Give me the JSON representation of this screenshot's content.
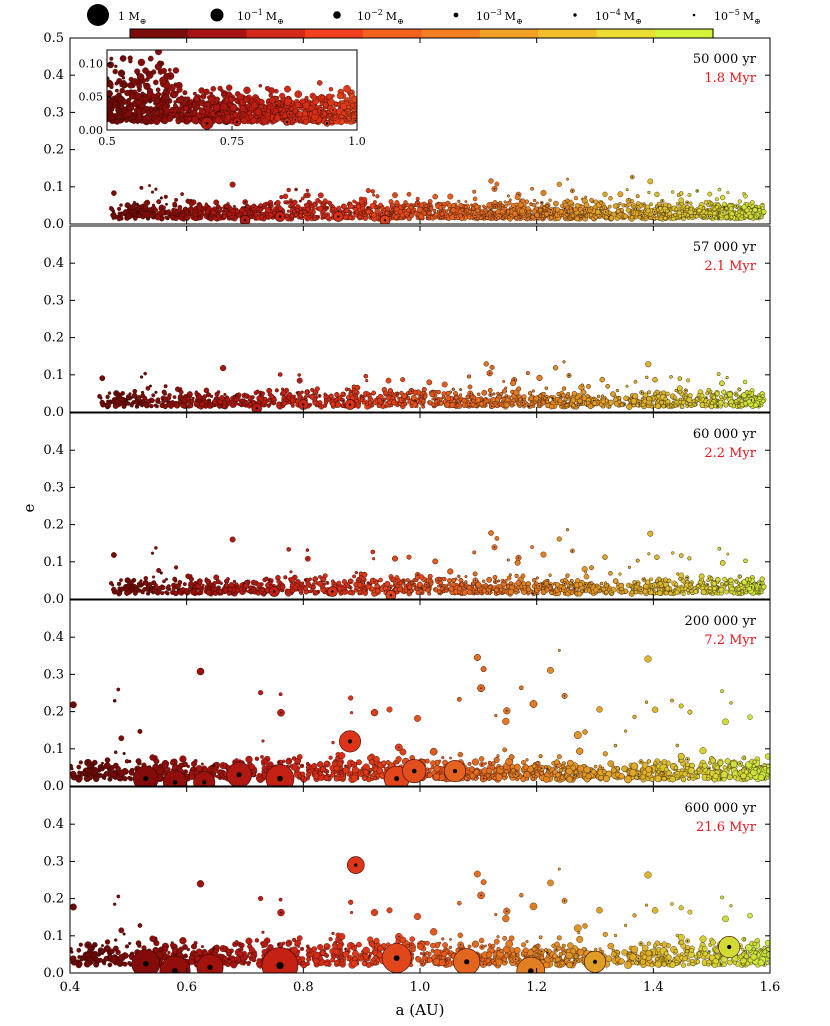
{
  "chart_data": {
    "type": "scatter",
    "xlabel": "a (AU)",
    "ylabel": "e",
    "xlim": [
      0.4,
      1.6
    ],
    "ylim": [
      0.0,
      0.5
    ],
    "x_ticks": [
      "0.4",
      "0.6",
      "0.8",
      "1.0",
      "1.2",
      "1.4",
      "1.6"
    ],
    "y_ticks": [
      "0.0",
      "0.1",
      "0.2",
      "0.3",
      "0.4",
      "0.5"
    ],
    "shared_axes": true,
    "grid": false,
    "color_encoding": "semi-major axis (dark red at small a to yellow-green at large a)",
    "size_encoding": "particle mass",
    "colorbar_colors": [
      "#7a0c0c",
      "#a81414",
      "#d42a1c",
      "#f2401e",
      "#f3611f",
      "#f47f22",
      "#f2a026",
      "#f2be2a",
      "#eedd32",
      "#d5f23a"
    ],
    "mass_legend": [
      {
        "label_main": "1 M",
        "label_sup": "",
        "radius": 11
      },
      {
        "label_main": "10",
        "label_sup": "−1",
        "radius": 6.5
      },
      {
        "label_main": "10",
        "label_sup": "−2",
        "radius": 3.8
      },
      {
        "label_main": "10",
        "label_sup": "−3",
        "radius": 2.4
      },
      {
        "label_main": "10",
        "label_sup": "−4",
        "radius": 1.7
      },
      {
        "label_main": "10",
        "label_sup": "−5",
        "radius": 1.3
      }
    ],
    "mass_unit": "M",
    "mass_unit_sub": "⊕",
    "panels": [
      {
        "time": "50 000 yr",
        "scaled_time": "1.8 Myr",
        "a_min": 0.47,
        "a_max": 1.59,
        "e_typical": 0.04,
        "e_spread_max": 0.15,
        "max_body_mass_earth": 0.03,
        "big_bodies": [
          {
            "a": 0.7,
            "e": 0.01
          },
          {
            "a": 0.76,
            "e": 0.02
          },
          {
            "a": 0.86,
            "e": 0.02
          },
          {
            "a": 0.94,
            "e": 0.01
          }
        ]
      },
      {
        "time": "57 000 yr",
        "scaled_time": "2.1 Myr",
        "a_min": 0.45,
        "a_max": 1.59,
        "e_typical": 0.04,
        "e_spread_max": 0.17,
        "max_body_mass_earth": 0.03,
        "big_bodies": [
          {
            "a": 0.72,
            "e": 0.01
          },
          {
            "a": 0.8,
            "e": 0.02
          },
          {
            "a": 0.88,
            "e": 0.02
          }
        ]
      },
      {
        "time": "60 000 yr",
        "scaled_time": "2.2 Myr",
        "a_min": 0.47,
        "a_max": 1.59,
        "e_typical": 0.04,
        "e_spread_max": 0.24,
        "max_body_mass_earth": 0.03,
        "big_bodies": [
          {
            "a": 0.75,
            "e": 0.02
          },
          {
            "a": 0.85,
            "e": 0.02
          },
          {
            "a": 0.95,
            "e": 0.01
          }
        ]
      },
      {
        "time": "200 000 yr",
        "scaled_time": "7.2 Myr",
        "a_min": 0.4,
        "a_max": 1.6,
        "e_typical": 0.05,
        "e_spread_max": 0.48,
        "max_body_mass_earth": 0.1,
        "big_bodies": [
          {
            "a": 0.53,
            "e": 0.02,
            "m": 0.06
          },
          {
            "a": 0.58,
            "e": 0.01,
            "m": 0.05
          },
          {
            "a": 0.63,
            "e": 0.01,
            "m": 0.04
          },
          {
            "a": 0.69,
            "e": 0.03,
            "m": 0.06
          },
          {
            "a": 0.76,
            "e": 0.02,
            "m": 0.08
          },
          {
            "a": 0.88,
            "e": 0.12,
            "m": 0.04
          },
          {
            "a": 0.96,
            "e": 0.02,
            "m": 0.06
          },
          {
            "a": 0.99,
            "e": 0.04,
            "m": 0.05
          },
          {
            "a": 1.06,
            "e": 0.04,
            "m": 0.04
          }
        ]
      },
      {
        "time": "600 000 yr",
        "scaled_time": "21.6 Myr",
        "a_min": 0.4,
        "a_max": 1.6,
        "e_typical": 0.06,
        "e_spread_max": 0.36,
        "max_body_mass_earth": 0.15,
        "big_bodies": [
          {
            "a": 0.53,
            "e": 0.025,
            "m": 0.08
          },
          {
            "a": 0.58,
            "e": 0.005,
            "m": 0.1
          },
          {
            "a": 0.64,
            "e": 0.015,
            "m": 0.07
          },
          {
            "a": 0.76,
            "e": 0.02,
            "m": 0.15
          },
          {
            "a": 0.96,
            "e": 0.04,
            "m": 0.09
          },
          {
            "a": 1.08,
            "e": 0.03,
            "m": 0.07
          },
          {
            "a": 1.19,
            "e": 0.005,
            "m": 0.08
          },
          {
            "a": 1.3,
            "e": 0.03,
            "m": 0.04
          },
          {
            "a": 0.89,
            "e": 0.29,
            "m": 0.02
          },
          {
            "a": 1.53,
            "e": 0.07,
            "m": 0.04
          }
        ]
      }
    ],
    "inset": {
      "panel_index": 0,
      "xlim": [
        0.5,
        1.0
      ],
      "ylim": [
        0.0,
        0.12
      ],
      "x_ticks": [
        "0.5",
        "0.75",
        "1.0"
      ],
      "y_ticks": [
        "0.00",
        "0.05",
        "0.10"
      ]
    }
  }
}
